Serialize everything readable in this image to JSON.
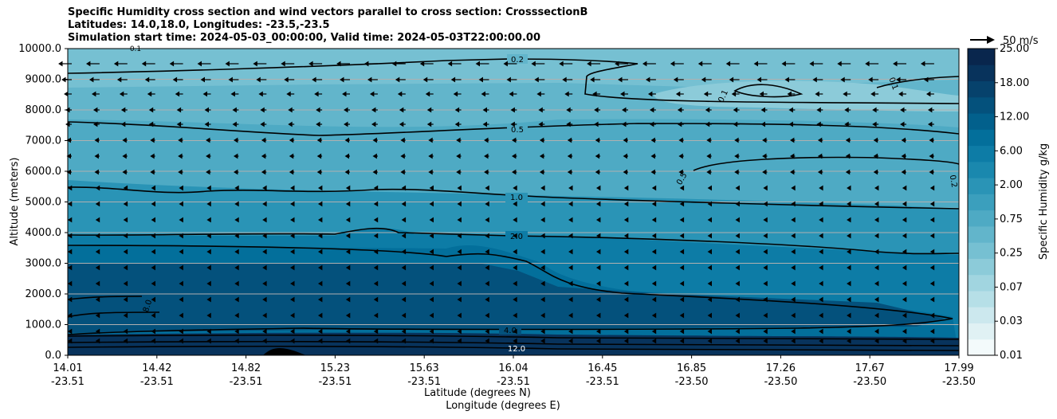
{
  "chart_data": {
    "type": "contourf",
    "title_lines": [
      "Specific Humidity cross section and wind vectors parallel to cross section: CrosssectionB",
      "Latitudes: 14.0,18.0, Longitudes: -23.5,-23.5",
      "Simulation start time: 2024-05-03_00:00:00, Valid time: 2024-05-03T22:00:00.00"
    ],
    "xlabel_lat": "Latitude (degrees N)",
    "xlabel_lon": "Longitude (degrees E)",
    "ylabel": "Altitude (meters)",
    "ylim": [
      0,
      10000
    ],
    "grid": "horizontal",
    "y_ticks": [
      "0.0",
      "1000.0",
      "2000.0",
      "3000.0",
      "4000.0",
      "5000.0",
      "6000.0",
      "7000.0",
      "8000.0",
      "9000.0",
      "10000.0"
    ],
    "x_ticks": [
      {
        "lat": "14.01",
        "lon": "-23.51"
      },
      {
        "lat": "14.42",
        "lon": "-23.51"
      },
      {
        "lat": "14.82",
        "lon": "-23.51"
      },
      {
        "lat": "15.23",
        "lon": "-23.51"
      },
      {
        "lat": "15.63",
        "lon": "-23.51"
      },
      {
        "lat": "16.04",
        "lon": "-23.51"
      },
      {
        "lat": "16.45",
        "lon": "-23.51"
      },
      {
        "lat": "16.85",
        "lon": "-23.50"
      },
      {
        "lat": "17.26",
        "lon": "-23.50"
      },
      {
        "lat": "17.67",
        "lon": "-23.50"
      },
      {
        "lat": "17.99",
        "lon": "-23.50"
      }
    ],
    "colorbar": {
      "label": "Specific Humidity g/kg",
      "tick_labels": [
        "0.01",
        "0.03",
        "0.07",
        "0.25",
        "0.75",
        "2.00",
        "6.00",
        "12.00",
        "18.00",
        "25.00"
      ],
      "levels": [
        0.01,
        0.02,
        0.03,
        0.05,
        0.07,
        0.1,
        0.25,
        0.5,
        0.75,
        1.0,
        2.0,
        4.0,
        6.0,
        8.0,
        12.0,
        15.0,
        18.0,
        22.0,
        25.0
      ],
      "colors": [
        "#f3fafb",
        "#e0f1f4",
        "#cce8ee",
        "#b6dfe7",
        "#a1d5e0",
        "#8ccbd9",
        "#76c0d2",
        "#62b5cb",
        "#4eaac4",
        "#3b9fbd",
        "#2a94b6",
        "#1a88ae",
        "#0d7ca6",
        "#036f9b",
        "#02608c",
        "#04517c",
        "#06426c",
        "#08335c",
        "#09264d"
      ]
    },
    "wind_reference": {
      "label": "50 m/s",
      "speed": 50
    },
    "contour_labels": [
      "0.1",
      "0.2",
      "0.5",
      "1.0",
      "2.0",
      "4.0",
      "8.0",
      "12.0"
    ]
  }
}
